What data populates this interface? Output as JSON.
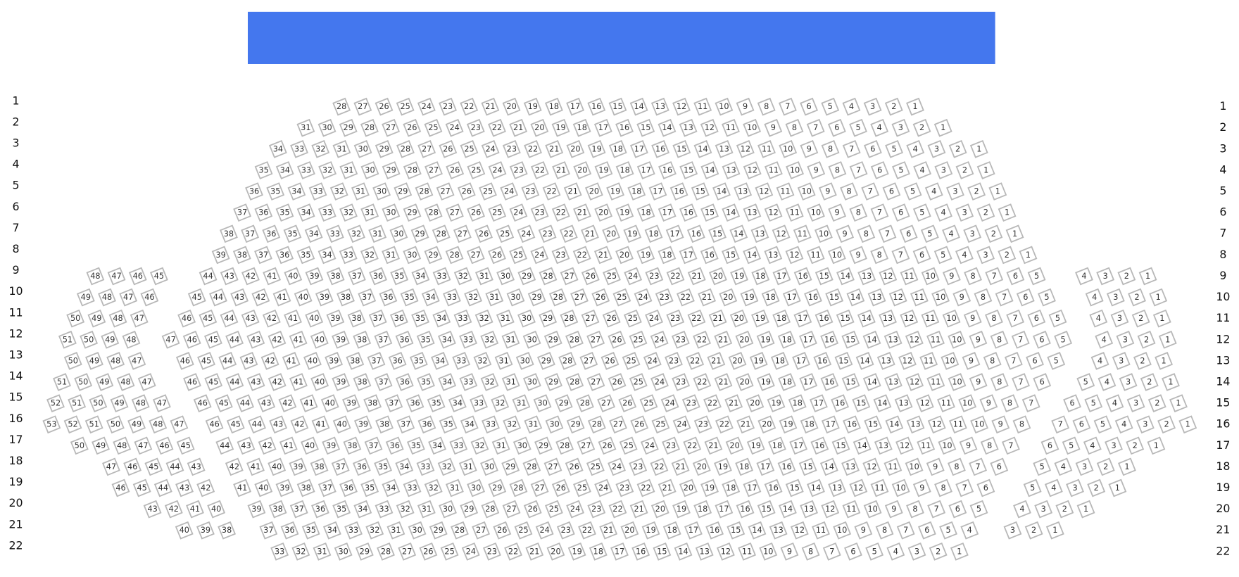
{
  "row_labels": [
    1,
    2,
    3,
    4,
    5,
    6,
    7,
    8,
    9,
    10,
    11,
    12,
    13,
    14,
    15,
    16,
    17,
    18,
    19,
    20,
    21,
    22
  ],
  "sections": [
    {
      "rows": [
        [
          48,
          47,
          46,
          45
        ],
        [
          49,
          48,
          47,
          46
        ],
        [
          50,
          49,
          48,
          47
        ],
        [
          51,
          50,
          49,
          48
        ],
        [
          50,
          49,
          48,
          47
        ],
        [
          51,
          50,
          49,
          48,
          47
        ],
        [
          52,
          51,
          50,
          49,
          48,
          47
        ],
        [
          53,
          52,
          51,
          50,
          49,
          48,
          47
        ],
        [
          50,
          49,
          48,
          47,
          46,
          45
        ],
        [
          47,
          46,
          45,
          44,
          43
        ],
        [
          46,
          45,
          44,
          43,
          42
        ],
        [
          43,
          42,
          41,
          40
        ],
        [
          40,
          39,
          38
        ]
      ]
    },
    {
      "rows": [
        [
          28,
          27,
          26,
          25,
          24,
          23,
          22,
          21,
          20,
          19,
          18,
          17,
          16,
          15,
          14,
          13,
          12,
          11,
          10,
          9,
          8,
          7,
          6,
          5,
          4,
          3,
          2,
          1
        ],
        [
          31,
          30,
          29,
          28,
          27,
          26,
          25,
          24,
          23,
          22,
          21,
          20,
          19,
          18,
          17,
          16,
          15,
          14,
          13,
          12,
          11,
          10,
          9,
          8,
          7,
          6,
          5,
          4,
          3,
          2,
          1
        ],
        [
          34,
          33,
          32,
          31,
          30,
          29,
          28,
          27,
          26,
          25,
          24,
          23,
          22,
          21,
          20,
          19,
          18,
          17,
          16,
          15,
          14,
          13,
          12,
          11,
          10,
          9,
          8,
          7,
          6,
          5,
          4,
          3,
          2,
          1
        ],
        [
          35,
          34,
          33,
          32,
          31,
          30,
          29,
          28,
          27,
          26,
          25,
          24,
          23,
          22,
          21,
          20,
          19,
          18,
          17,
          16,
          15,
          14,
          13,
          12,
          11,
          10,
          9,
          8,
          7,
          6,
          5,
          4,
          3,
          2,
          1
        ],
        [
          36,
          35,
          34,
          33,
          32,
          31,
          30,
          29,
          28,
          27,
          26,
          25,
          24,
          23,
          22,
          21,
          20,
          19,
          18,
          17,
          16,
          15,
          14,
          13,
          12,
          11,
          10,
          9,
          8,
          7,
          6,
          5,
          4,
          3,
          2,
          1
        ],
        [
          37,
          36,
          35,
          34,
          33,
          32,
          31,
          30,
          29,
          28,
          27,
          26,
          25,
          24,
          23,
          22,
          21,
          20,
          19,
          18,
          17,
          16,
          15,
          14,
          13,
          12,
          11,
          10,
          9,
          8,
          7,
          6,
          5,
          4,
          3,
          2,
          1
        ],
        [
          38,
          37,
          36,
          35,
          34,
          33,
          32,
          31,
          30,
          29,
          28,
          27,
          26,
          25,
          24,
          23,
          22,
          21,
          20,
          19,
          18,
          17,
          16,
          15,
          14,
          13,
          12,
          11,
          10,
          9,
          8,
          7,
          6,
          5,
          4,
          3,
          2,
          1
        ],
        [
          39,
          38,
          37,
          36,
          35,
          34,
          33,
          32,
          31,
          30,
          29,
          28,
          27,
          26,
          25,
          24,
          23,
          22,
          21,
          20,
          19,
          18,
          17,
          16,
          15,
          14,
          13,
          12,
          11,
          10,
          9,
          8,
          7,
          6,
          5,
          4,
          3,
          2,
          1
        ],
        [
          44,
          43,
          42,
          41,
          40,
          39,
          38,
          37,
          36,
          35,
          34,
          33,
          32,
          31,
          30,
          29,
          28,
          27,
          26,
          25,
          24,
          23,
          22,
          21,
          20,
          19,
          18,
          17,
          16,
          15,
          14,
          13,
          12,
          11,
          10,
          9,
          8,
          7,
          6,
          5
        ],
        [
          45,
          44,
          43,
          42,
          41,
          40,
          39,
          38,
          37,
          36,
          35,
          34,
          33,
          32,
          31,
          30,
          29,
          28,
          27,
          26,
          25,
          24,
          23,
          22,
          21,
          20,
          19,
          18,
          17,
          16,
          15,
          14,
          13,
          12,
          11,
          10,
          9,
          8,
          7,
          6,
          5
        ],
        [
          46,
          45,
          44,
          43,
          42,
          41,
          40,
          39,
          38,
          37,
          36,
          35,
          34,
          33,
          32,
          31,
          30,
          29,
          28,
          27,
          26,
          25,
          24,
          23,
          22,
          21,
          20,
          19,
          18,
          17,
          16,
          15,
          14,
          13,
          12,
          11,
          10,
          9,
          8,
          7,
          6,
          5
        ],
        [
          47,
          46,
          45,
          44,
          43,
          42,
          41,
          40,
          39,
          38,
          37,
          36,
          35,
          34,
          33,
          32,
          31,
          30,
          29,
          28,
          27,
          26,
          25,
          24,
          23,
          22,
          21,
          20,
          19,
          18,
          17,
          16,
          15,
          14,
          13,
          12,
          11,
          10,
          9,
          8,
          7,
          6,
          5
        ],
        [
          46,
          45,
          44,
          43,
          42,
          41,
          40,
          39,
          38,
          37,
          36,
          35,
          34,
          33,
          32,
          31,
          30,
          29,
          28,
          27,
          26,
          25,
          24,
          23,
          22,
          21,
          20,
          19,
          18,
          17,
          16,
          15,
          14,
          13,
          12,
          11,
          10,
          9,
          8,
          7,
          6,
          5
        ],
        [
          46,
          45,
          44,
          43,
          42,
          41,
          40,
          39,
          38,
          37,
          36,
          35,
          34,
          33,
          32,
          31,
          30,
          29,
          28,
          27,
          26,
          25,
          24,
          23,
          22,
          21,
          20,
          19,
          18,
          17,
          16,
          15,
          14,
          13,
          12,
          11,
          10,
          9,
          8,
          7,
          6
        ],
        [
          46,
          45,
          44,
          43,
          42,
          41,
          40,
          39,
          38,
          37,
          36,
          35,
          34,
          33,
          32,
          31,
          30,
          29,
          28,
          27,
          26,
          25,
          24,
          23,
          22,
          21,
          20,
          19,
          18,
          17,
          16,
          15,
          14,
          13,
          12,
          11,
          10,
          9,
          8,
          7
        ],
        [
          46,
          45,
          44,
          43,
          42,
          41,
          40,
          39,
          38,
          37,
          36,
          35,
          34,
          33,
          32,
          31,
          30,
          29,
          28,
          27,
          26,
          25,
          24,
          23,
          22,
          21,
          20,
          19,
          18,
          17,
          16,
          15,
          14,
          13,
          12,
          11,
          10,
          9,
          8
        ],
        [
          44,
          43,
          42,
          41,
          40,
          39,
          38,
          37,
          36,
          35,
          34,
          33,
          32,
          31,
          30,
          29,
          28,
          27,
          26,
          25,
          24,
          23,
          22,
          21,
          20,
          19,
          18,
          17,
          16,
          15,
          14,
          13,
          12,
          11,
          10,
          9,
          8,
          7
        ],
        [
          42,
          41,
          40,
          39,
          38,
          37,
          36,
          35,
          34,
          33,
          32,
          31,
          30,
          29,
          28,
          27,
          26,
          25,
          24,
          23,
          22,
          21,
          20,
          19,
          18,
          17,
          16,
          15,
          14,
          13,
          12,
          11,
          10,
          9,
          8,
          7,
          6
        ],
        [
          41,
          40,
          39,
          38,
          37,
          36,
          35,
          34,
          33,
          32,
          31,
          30,
          29,
          28,
          27,
          26,
          25,
          24,
          23,
          22,
          21,
          20,
          19,
          18,
          17,
          16,
          15,
          14,
          13,
          12,
          11,
          10,
          9,
          8,
          7,
          6
        ],
        [
          39,
          38,
          37,
          36,
          35,
          34,
          33,
          32,
          31,
          30,
          29,
          28,
          27,
          26,
          25,
          24,
          23,
          22,
          21,
          20,
          19,
          18,
          17,
          16,
          15,
          14,
          13,
          12,
          11,
          10,
          9,
          8,
          7,
          6,
          5
        ],
        [
          37,
          36,
          35,
          34,
          33,
          32,
          31,
          30,
          29,
          28,
          27,
          26,
          25,
          24,
          23,
          22,
          21,
          20,
          19,
          18,
          17,
          16,
          15,
          14,
          13,
          12,
          11,
          10,
          9,
          8,
          7,
          6,
          5,
          4
        ],
        [
          33,
          32,
          31,
          30,
          29,
          28,
          27,
          26,
          25,
          24,
          23,
          22,
          21,
          20,
          19,
          18,
          17,
          16,
          15,
          14,
          13,
          12,
          11,
          10,
          9,
          8,
          7,
          6,
          5,
          4,
          3,
          2,
          1
        ]
      ]
    },
    {
      "rows": [
        [
          4,
          3,
          2,
          1
        ],
        [
          4,
          3,
          2,
          1
        ],
        [
          4,
          3,
          2,
          1
        ],
        [
          4,
          3,
          2,
          1
        ],
        [
          4,
          3,
          2,
          1
        ],
        [
          5,
          4,
          3,
          2,
          1
        ],
        [
          6,
          5,
          4,
          3,
          2,
          1
        ],
        [
          7,
          6,
          5,
          4,
          3,
          2,
          1
        ],
        [
          6,
          5,
          4,
          3,
          2,
          1
        ],
        [
          5,
          4,
          3,
          2,
          1
        ],
        [
          5,
          4,
          3,
          2,
          1
        ],
        [
          4,
          3,
          2,
          1
        ],
        [
          3,
          2,
          1
        ]
      ]
    }
  ]
}
